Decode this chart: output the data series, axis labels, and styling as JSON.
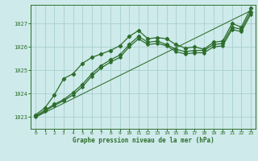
{
  "title": "Graphe pression niveau de la mer (hPa)",
  "xlim": [
    -0.5,
    23.5
  ],
  "ylim": [
    1022.5,
    1027.8
  ],
  "yticks": [
    1023,
    1024,
    1025,
    1026,
    1027
  ],
  "xticks": [
    0,
    1,
    2,
    3,
    4,
    5,
    6,
    7,
    8,
    9,
    10,
    11,
    12,
    13,
    14,
    15,
    16,
    17,
    18,
    19,
    20,
    21,
    22,
    23
  ],
  "bg_color": "#ceeaea",
  "grid_color": "#a8cfcf",
  "line_color": "#2d6e2d",
  "series1_x": [
    0,
    1,
    2,
    3,
    4,
    5,
    6,
    7,
    8,
    9,
    10,
    11,
    12,
    13,
    14,
    15,
    16,
    17,
    18,
    19,
    20,
    21,
    22,
    23
  ],
  "series1_y": [
    1023.1,
    1023.4,
    1023.95,
    1024.65,
    1024.85,
    1025.3,
    1025.55,
    1025.7,
    1025.85,
    1026.05,
    1026.45,
    1026.7,
    1026.35,
    1026.4,
    1026.35,
    1026.1,
    1025.95,
    1026.0,
    1025.9,
    1026.2,
    1026.25,
    1027.0,
    1026.85,
    1027.65
  ],
  "series2_x": [
    0,
    1,
    2,
    3,
    4,
    5,
    6,
    7,
    8,
    9,
    10,
    11,
    12,
    13,
    14,
    15,
    16,
    17,
    18,
    19,
    20,
    21,
    22,
    23
  ],
  "series2_y": [
    1023.05,
    1023.3,
    1023.55,
    1023.75,
    1024.05,
    1024.4,
    1024.85,
    1025.2,
    1025.45,
    1025.65,
    1026.1,
    1026.45,
    1026.2,
    1026.25,
    1026.1,
    1025.9,
    1025.8,
    1025.85,
    1025.85,
    1026.1,
    1026.15,
    1026.85,
    1026.75,
    1027.5
  ],
  "series3_x": [
    0,
    1,
    2,
    3,
    4,
    5,
    6,
    7,
    8,
    9,
    10,
    11,
    12,
    13,
    14,
    15,
    16,
    17,
    18,
    19,
    20,
    21,
    22,
    23
  ],
  "series3_y": [
    1023.0,
    1023.25,
    1023.5,
    1023.7,
    1023.95,
    1024.3,
    1024.75,
    1025.1,
    1025.35,
    1025.55,
    1026.0,
    1026.35,
    1026.1,
    1026.15,
    1026.05,
    1025.8,
    1025.7,
    1025.75,
    1025.75,
    1026.0,
    1026.05,
    1026.75,
    1026.65,
    1027.4
  ],
  "straight_line_x": [
    0,
    23
  ],
  "straight_line_y": [
    1023.0,
    1027.55
  ]
}
